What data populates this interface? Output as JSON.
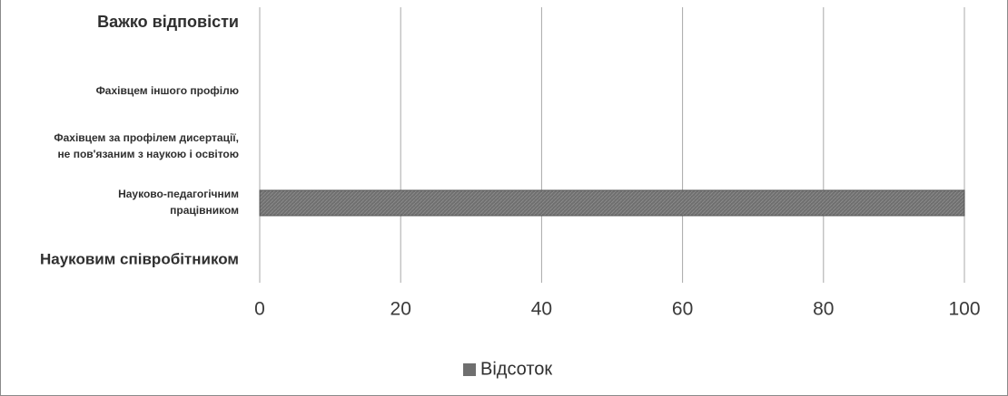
{
  "chart_data": {
    "type": "bar",
    "orientation": "horizontal",
    "categories": [
      "Важко відповісти",
      "Фахівцем іншого профілю",
      "Фахівцем за профілем дисертації, не пов'язаним з наукою і освітою",
      "Науково-педагогічним працівником",
      "Науковим співробітником"
    ],
    "category_lines": [
      [
        "Важко відповісти"
      ],
      [
        "Фахівцем іншого профілю"
      ],
      [
        "Фахівцем за профілем дисертації,",
        "не пов'язаним з наукою і освітою"
      ],
      [
        "Науково-педагогічним",
        "працівником"
      ],
      [
        "Науковим співробітником"
      ]
    ],
    "series": [
      {
        "name": "Відсоток",
        "values": [
          0,
          0,
          0,
          100,
          0
        ],
        "color": "#777777"
      }
    ],
    "xlim": [
      0,
      100
    ],
    "x_ticks": [
      "0",
      "20",
      "40",
      "60",
      "80",
      "100"
    ],
    "grid": true,
    "legend_position": "bottom-center",
    "title": "",
    "xlabel": "",
    "ylabel": ""
  }
}
